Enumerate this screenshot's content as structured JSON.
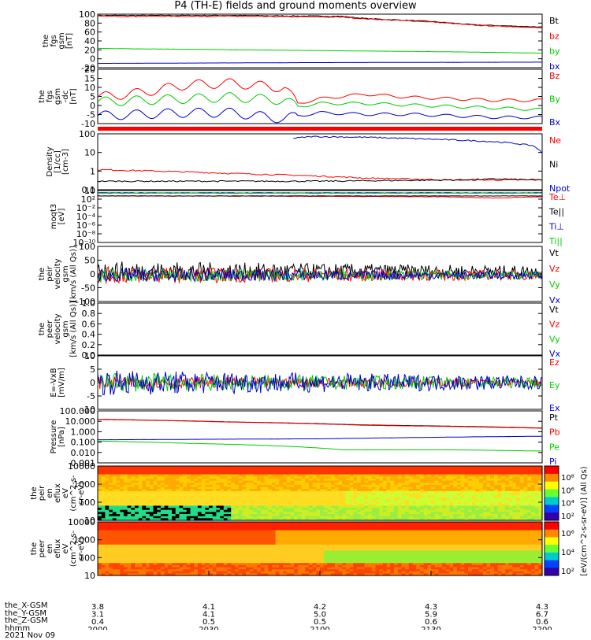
{
  "title": "P4 (TH-E) fields and ground moments overview",
  "panels": [
    {
      "key": "fgs_gsm",
      "ylabel": [
        "the",
        "fgs",
        "gsm",
        "[nT]"
      ],
      "ticks": [
        "100",
        "80",
        "60",
        "40",
        "20",
        "0",
        "-20"
      ],
      "legend": [
        {
          "text": "Bt",
          "color": "#000000"
        },
        {
          "text": "bz",
          "color": "#ff0000"
        },
        {
          "text": "by",
          "color": "#00cc00"
        },
        {
          "text": "bx",
          "color": "#0000cc"
        }
      ]
    },
    {
      "key": "fgs_gsm_dc",
      "ylabel": [
        "the",
        "fgs",
        "gsm",
        "-dc",
        "[nT]"
      ],
      "ticks": [
        "20",
        "15",
        "10",
        "5",
        "0",
        "-5",
        "-10"
      ],
      "legend": [
        {
          "text": "Bz",
          "color": "#ff0000"
        },
        {
          "text": "By",
          "color": "#00cc00"
        },
        {
          "text": "Bx",
          "color": "#0000cc"
        }
      ]
    },
    {
      "key": "density",
      "ylabel": [
        "Density",
        "[1/cc]",
        "[cm-3]"
      ],
      "ticks": [
        "100",
        "10",
        "1",
        "0.1"
      ],
      "legend": [
        {
          "text": "Ne",
          "color": "#ff0000"
        },
        {
          "text": "Ni",
          "color": "#000000"
        },
        {
          "text": "Npot",
          "color": "#0000cc"
        }
      ]
    },
    {
      "key": "temperature",
      "ylabel": [
        "moqt3",
        "[eV]"
      ],
      "ticks": [
        "10",
        "10²",
        "10⁻²",
        "10⁻⁴",
        "10⁻⁶",
        "10⁻⁸",
        "10⁻¹⁰"
      ],
      "legend": [
        {
          "text": "Te⊥",
          "color": "#ff0000"
        },
        {
          "text": "Te||",
          "color": "#000000"
        },
        {
          "text": "Ti⊥",
          "color": "#0000cc"
        },
        {
          "text": "Ti||",
          "color": "#00cc00"
        }
      ]
    },
    {
      "key": "peir_velocity",
      "ylabel": [
        "the",
        "peir",
        "velocity",
        "gsm",
        "[km/s (All Qs)]"
      ],
      "ticks": [
        "100",
        "50",
        "0",
        "-50",
        "-100"
      ],
      "legend": [
        {
          "text": "Vt",
          "color": "#000000"
        },
        {
          "text": "Vz",
          "color": "#ff0000"
        },
        {
          "text": "Vy",
          "color": "#00cc00"
        },
        {
          "text": "Vx",
          "color": "#0000cc"
        }
      ]
    },
    {
      "key": "peer_velocity",
      "ylabel": [
        "the",
        "peer",
        "velocity",
        "gsm",
        "[km/s (All Qs)]"
      ],
      "ticks": [
        "1.0",
        "0.8",
        "0.6",
        "0.4",
        "0.2",
        "0.0"
      ],
      "legend": [
        {
          "text": "Vt",
          "color": "#000000"
        },
        {
          "text": "Vz",
          "color": "#ff0000"
        },
        {
          "text": "Vy",
          "color": "#00cc00"
        },
        {
          "text": "Vx",
          "color": "#0000cc"
        }
      ]
    },
    {
      "key": "efield",
      "ylabel": [
        "E=-VxB",
        "[mV/m]"
      ],
      "ticks": [
        "10",
        "5",
        "0",
        "-5",
        "-10"
      ],
      "legend": [
        {
          "text": "Ez",
          "color": "#ff0000"
        },
        {
          "text": "Ey",
          "color": "#00cc00"
        },
        {
          "text": "Ex",
          "color": "#0000cc"
        }
      ]
    },
    {
      "key": "pressure",
      "ylabel": [
        "Pressure",
        "[nPa]"
      ],
      "ticks": [
        "100.000",
        "10.000",
        "1.000",
        "0.100",
        "0.010",
        "0.001"
      ],
      "legend": [
        {
          "text": "Pt",
          "color": "#000000"
        },
        {
          "text": "Pb",
          "color": "#ff0000"
        },
        {
          "text": "Pe",
          "color": "#00cc00"
        },
        {
          "text": "Pi",
          "color": "#0000cc"
        }
      ]
    },
    {
      "key": "peir_eflux",
      "ylabel": [
        "the",
        "peir",
        "en",
        "eflux",
        "eV",
        "(cm^2-s-",
        "sr-eV)"
      ],
      "ticks": [
        "10000",
        "1000",
        "100",
        "10"
      ],
      "legend": []
    },
    {
      "key": "peer_eflux",
      "ylabel": [
        "the",
        "peer",
        "en",
        "eflux",
        "eV",
        "(cm^2-s-",
        "sr-eV)"
      ],
      "ticks": [
        "10000",
        "1000",
        "100",
        "10"
      ],
      "legend": []
    }
  ],
  "colorbar": {
    "label": "[eV/(cm^2-s-sr-eV)] (All Qs)",
    "ticks_top": [
      "10⁸",
      "10⁶",
      "10⁴",
      "10²"
    ],
    "ticks_bottom": [
      "10⁶",
      "10⁴",
      "10²"
    ]
  },
  "chart_data": {
    "type": "line",
    "x_axis": {
      "rows": [
        {
          "label": "the_X-GSM",
          "values": [
            "3.8",
            "4.1",
            "4.2",
            "4.3",
            "4.3"
          ]
        },
        {
          "label": "the_Y-GSM",
          "values": [
            "3.1",
            "4.1",
            "5.0",
            "5.9",
            "6.7"
          ]
        },
        {
          "label": "the_Z-GSM",
          "values": [
            "0.4",
            "0.5",
            "0.5",
            "0.6",
            "0.6"
          ]
        },
        {
          "label": "hhmm",
          "values": [
            "2000",
            "2030",
            "2100",
            "2130",
            "2200"
          ]
        }
      ],
      "date": "2021 Nov 09",
      "xlim_hhmm": [
        "2000",
        "2200"
      ]
    },
    "series": {
      "fgs_gsm": [
        {
          "name": "Bt",
          "color": "#000000",
          "x": [
            0,
            0.3,
            0.55,
            0.6,
            0.75,
            0.85,
            1
          ],
          "values": [
            102,
            102,
            100,
            95,
            88,
            80,
            75
          ]
        },
        {
          "name": "bz",
          "color": "#ff0000",
          "x": [
            0,
            0.3,
            0.55,
            0.6,
            0.75,
            0.85,
            1
          ],
          "values": [
            100,
            100,
            98,
            94,
            87,
            79,
            73
          ]
        },
        {
          "name": "by",
          "color": "#00cc00",
          "x": [
            0,
            0.2,
            0.4,
            0.6,
            0.8,
            1
          ],
          "values": [
            25,
            23,
            21,
            19,
            17,
            14
          ]
        },
        {
          "name": "bx",
          "color": "#0000cc",
          "x": [
            0,
            0.5,
            1
          ],
          "values": [
            -10,
            -8,
            -7
          ]
        }
      ],
      "fgs_gsm_dc": [
        {
          "name": "Bz",
          "color": "#ff0000",
          "x": [
            0,
            0.1,
            0.2,
            0.3,
            0.42,
            0.45,
            0.5,
            0.6,
            0.7,
            0.8,
            0.9,
            1
          ],
          "values": [
            4,
            7,
            12,
            13,
            10,
            0,
            3,
            6,
            4,
            3,
            2,
            2
          ]
        },
        {
          "name": "By",
          "color": "#00cc00",
          "x": [
            0,
            0.1,
            0.2,
            0.3,
            0.42,
            0.45,
            0.5,
            0.6,
            0.7,
            0.8,
            0.9,
            1
          ],
          "values": [
            1,
            2,
            3,
            4,
            2,
            -2,
            0,
            0,
            -1,
            -2,
            -3,
            -4
          ]
        },
        {
          "name": "Bx",
          "color": "#0000cc",
          "x": [
            0,
            0.1,
            0.2,
            0.3,
            0.42,
            0.45,
            0.5,
            0.6,
            0.7,
            0.8,
            0.9,
            1
          ],
          "values": [
            -8,
            -7,
            -6,
            -6,
            -10,
            -8,
            -6,
            -7,
            -7,
            -8,
            -9,
            -9
          ]
        }
      ],
      "density": [
        {
          "name": "Ne",
          "color": "#ff0000",
          "x": [
            0,
            0.3,
            0.6,
            0.8,
            1
          ],
          "values": [
            1.4,
            0.8,
            0.4,
            0.3,
            0.3
          ]
        },
        {
          "name": "Ni",
          "color": "#000000",
          "x": [
            0,
            0.5,
            0.8,
            0.9,
            1
          ],
          "values": [
            0.25,
            0.25,
            0.3,
            0.35,
            0.3
          ]
        },
        {
          "name": "Npot",
          "color": "#0000cc",
          "x": [
            0.44,
            0.48,
            0.6,
            0.7,
            0.8,
            0.9,
            0.98,
            1
          ],
          "values": [
            150,
            200,
            180,
            150,
            120,
            90,
            50,
            15
          ]
        }
      ],
      "temperature": [
        {
          "name": "Te⊥",
          "color": "#ff0000",
          "x": [
            0,
            0.5,
            0.75,
            0.9,
            1
          ],
          "values": [
            3,
            2.5,
            2,
            1,
            2
          ]
        },
        {
          "name": "Te||",
          "color": "#000000",
          "x": [
            0,
            0.5,
            1
          ],
          "values": [
            3,
            3,
            3
          ]
        },
        {
          "name": "Ti⊥",
          "color": "#0000cc",
          "x": [
            0,
            0.5,
            1
          ],
          "values": [
            15,
            15,
            15
          ]
        },
        {
          "name": "Ti||",
          "color": "#00cc00",
          "x": [
            0,
            0.5,
            1
          ],
          "values": [
            12,
            12,
            12
          ]
        }
      ],
      "peir_velocity": [
        {
          "name": "Vt",
          "color": "#000000",
          "amplitude": 30,
          "mean": 15
        },
        {
          "name": "Vz",
          "color": "#ff0000",
          "amplitude": 25,
          "mean": 0
        },
        {
          "name": "Vy",
          "color": "#00cc00",
          "amplitude": 20,
          "mean": 0
        },
        {
          "name": "Vx",
          "color": "#0000cc",
          "amplitude": 20,
          "mean": 0
        }
      ],
      "efield": [
        {
          "name": "Ez",
          "color": "#ff0000",
          "amplitude": 2,
          "mean": 0
        },
        {
          "name": "Ey",
          "color": "#00cc00",
          "amplitude": 3,
          "mean": 0
        },
        {
          "name": "Ex",
          "color": "#0000cc",
          "amplitude": 4,
          "mean": 0
        }
      ],
      "pressure": [
        {
          "name": "Pt",
          "color": "#000000",
          "x": [
            0,
            0.3,
            0.6,
            1
          ],
          "values": [
            22,
            12,
            6,
            3
          ]
        },
        {
          "name": "Pb",
          "color": "#ff0000",
          "x": [
            0,
            0.3,
            0.6,
            1
          ],
          "values": [
            21,
            11.5,
            5.5,
            2.8
          ]
        },
        {
          "name": "Pe",
          "color": "#00cc00",
          "x": [
            0,
            0.2,
            0.4,
            0.55,
            0.8,
            1
          ],
          "values": [
            0.15,
            0.09,
            0.05,
            0.02,
            0.02,
            0.015
          ]
        },
        {
          "name": "Pi",
          "color": "#0000cc",
          "x": [
            0,
            0.5,
            1
          ],
          "values": [
            0.2,
            0.25,
            0.45
          ]
        }
      ]
    },
    "y_ranges": {
      "fgs_gsm": [
        -20,
        105
      ],
      "fgs_gsm_dc": [
        -13,
        22
      ],
      "density": [
        0.07,
        300
      ],
      "temperature": [
        1e-10,
        50
      ],
      "peir_velocity": [
        -100,
        110
      ],
      "peer_velocity": [
        0,
        1
      ],
      "efield": [
        -11,
        11
      ],
      "pressure": [
        0.001,
        150
      ],
      "peir_eflux": [
        7,
        20000
      ],
      "peer_eflux": [
        7,
        20000
      ]
    }
  }
}
